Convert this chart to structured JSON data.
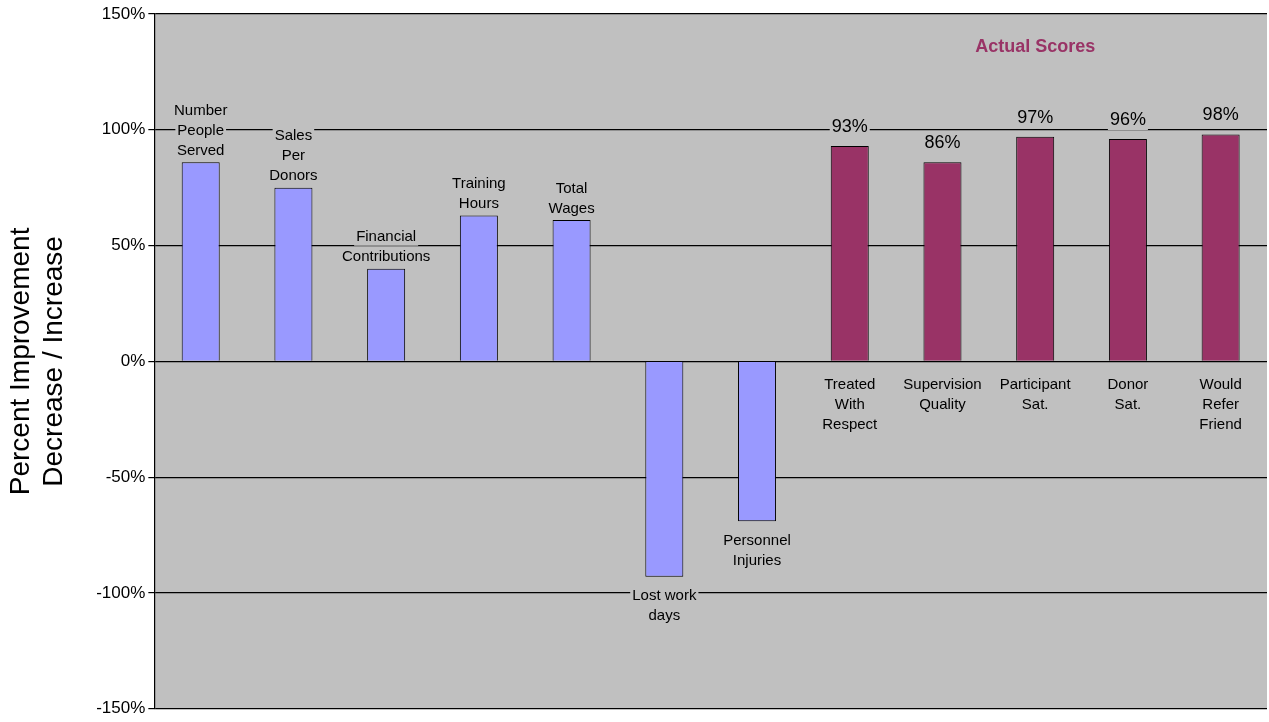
{
  "chart_data": {
    "type": "bar",
    "ylabel": "Percent Improvement\nDecrease / Increase",
    "categories": [
      "Number\nPeople\nServed",
      "Sales\nPer\nDonors",
      "Financial\nContributions",
      "Training\nHours",
      "Total\nWages",
      "Lost work\ndays",
      "Personnel\nInjuries",
      "Treated\nWith\nRespect",
      "Supervision\nQuality",
      "Participant\nSat.",
      "Donor\nSat.",
      "Would\nRefer\nFriend"
    ],
    "values": [
      86,
      75,
      40,
      63,
      61,
      -93,
      -69,
      93,
      86,
      97,
      96,
      98
    ],
    "colors": [
      "#9999ff",
      "#9999ff",
      "#9999ff",
      "#9999ff",
      "#9999ff",
      "#9999ff",
      "#9999ff",
      "#993366",
      "#993366",
      "#993366",
      "#993366",
      "#993366"
    ],
    "value_labels": [
      null,
      null,
      null,
      null,
      null,
      null,
      null,
      "93%",
      "86%",
      "97%",
      "96%",
      "98%"
    ],
    "annotations": [
      "Actual Scores"
    ],
    "ylim": [
      -150,
      150
    ],
    "yticks": [
      {
        "value": -150,
        "label": "-150%"
      },
      {
        "value": -100,
        "label": "-100%"
      },
      {
        "value": -50,
        "label": "-50%"
      },
      {
        "value": 0,
        "label": "0%"
      },
      {
        "value": 50,
        "label": "50%"
      },
      {
        "value": 100,
        "label": "100%"
      },
      {
        "value": 150,
        "label": "150%"
      }
    ],
    "grid": "y",
    "legend": false,
    "tick_labels": "y"
  }
}
